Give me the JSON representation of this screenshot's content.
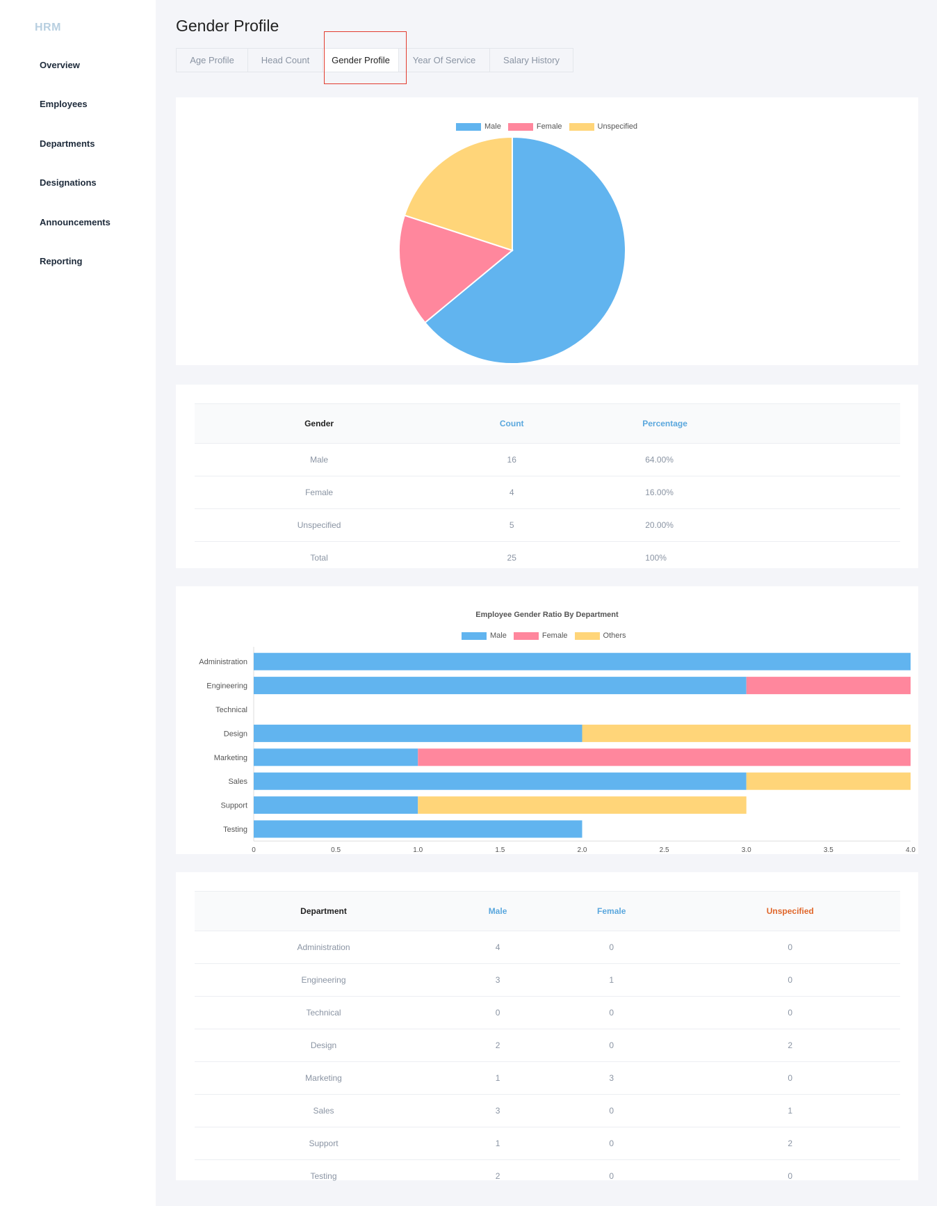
{
  "sidebar": {
    "brand": "HRM",
    "items": [
      {
        "label": "Overview"
      },
      {
        "label": "Employees"
      },
      {
        "label": "Departments"
      },
      {
        "label": "Designations"
      },
      {
        "label": "Announcements"
      },
      {
        "label": "Reporting"
      }
    ]
  },
  "page": {
    "title": "Gender Profile",
    "tabs": [
      {
        "label": "Age Profile"
      },
      {
        "label": "Head Count"
      },
      {
        "label": "Gender Profile",
        "active": true
      },
      {
        "label": "Year Of Service"
      },
      {
        "label": "Salary History"
      }
    ]
  },
  "colors": {
    "male": "#61b4ef",
    "female": "#ff879d",
    "unspecified": "#ffd579",
    "highlight": "#e23b2e"
  },
  "pie_legend": [
    "Male",
    "Female",
    "Unspecified"
  ],
  "gender_table": {
    "headers": [
      "Gender",
      "Count",
      "Percentage"
    ],
    "rows": [
      [
        "Male",
        "16",
        "64.00%"
      ],
      [
        "Female",
        "4",
        "16.00%"
      ],
      [
        "Unspecified",
        "5",
        "20.00%"
      ],
      [
        "Total",
        "25",
        "100%"
      ]
    ]
  },
  "dept_table": {
    "headers": [
      "Department",
      "Male",
      "Female",
      "Unspecified"
    ],
    "rows": [
      [
        "Administration",
        "4",
        "0",
        "0"
      ],
      [
        "Engineering",
        "3",
        "1",
        "0"
      ],
      [
        "Technical",
        "0",
        "0",
        "0"
      ],
      [
        "Design",
        "2",
        "0",
        "2"
      ],
      [
        "Marketing",
        "1",
        "3",
        "0"
      ],
      [
        "Sales",
        "3",
        "0",
        "1"
      ],
      [
        "Support",
        "1",
        "0",
        "2"
      ],
      [
        "Testing",
        "2",
        "0",
        "0"
      ]
    ]
  },
  "chart_data": [
    {
      "type": "pie",
      "categories": [
        "Male",
        "Female",
        "Unspecified"
      ],
      "values": [
        16,
        4,
        5
      ],
      "legend": "top"
    },
    {
      "type": "bar",
      "orientation": "horizontal",
      "stacked": true,
      "title": "Employee Gender Ratio By Department",
      "categories": [
        "Administration",
        "Engineering",
        "Technical",
        "Design",
        "Marketing",
        "Sales",
        "Support",
        "Testing"
      ],
      "series": [
        {
          "name": "Male",
          "values": [
            4,
            3,
            0,
            2,
            1,
            3,
            1,
            2
          ]
        },
        {
          "name": "Female",
          "values": [
            0,
            1,
            0,
            0,
            3,
            0,
            0,
            0
          ]
        },
        {
          "name": "Others",
          "values": [
            0,
            0,
            0,
            2,
            0,
            1,
            2,
            0
          ]
        }
      ],
      "xlim": [
        0,
        4
      ],
      "xticks": [
        "0",
        "0.5",
        "1.0",
        "1.5",
        "2.0",
        "2.5",
        "3.0",
        "3.5",
        "4.0"
      ],
      "legend": "top"
    }
  ]
}
